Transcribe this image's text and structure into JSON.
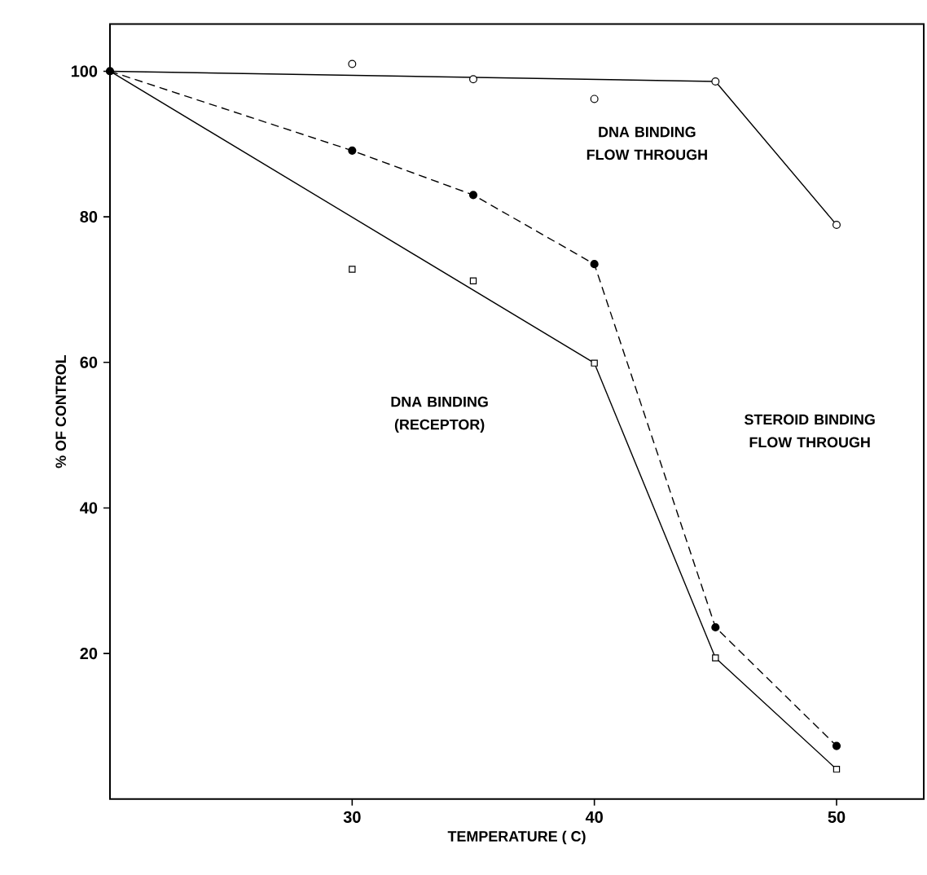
{
  "chart_data": {
    "type": "line",
    "xlabel": "TEMPERATURE  ( C)",
    "ylabel": "% OF CONTROL",
    "xlim": [
      20,
      53.6
    ],
    "ylim": [
      0,
      106.5
    ],
    "xticks": [
      30,
      40,
      50
    ],
    "yticks": [
      20,
      40,
      60,
      80,
      100
    ],
    "series": [
      {
        "type": "scatter",
        "marker": "circle",
        "color": "#000000",
        "x": [
          30,
          35,
          40,
          45,
          50
        ],
        "values": [
          101.0,
          98.9,
          96.2,
          98.6,
          78.9
        ]
      },
      {
        "marker": "none",
        "line_style": "solid",
        "color": "#000000",
        "x": [
          20,
          45,
          50
        ],
        "values": [
          100,
          98.6,
          78.9
        ]
      },
      {
        "marker": "circle",
        "line_style": "dashed",
        "color": "#000000",
        "x": [
          20,
          30,
          35,
          40,
          45,
          50
        ],
        "values": [
          100,
          89.1,
          83.0,
          73.5,
          23.6,
          7.3
        ]
      },
      {
        "type": "scatter",
        "marker": "square",
        "color": "#000000",
        "x": [
          30,
          35,
          40,
          45,
          50
        ],
        "values": [
          72.8,
          71.2,
          59.9,
          19.4,
          4.1
        ]
      },
      {
        "marker": "none",
        "line_style": "solid",
        "color": "#000000",
        "x": [
          20,
          40,
          45,
          50
        ],
        "values": [
          100,
          59.9,
          19.4,
          4.1
        ]
      }
    ],
    "annotations": [
      "DNA BINDING FLOW THROUGH",
      "DNA BINDING (RECEPTOR)",
      "STEROID BINDING FLOW THROUGH"
    ]
  }
}
